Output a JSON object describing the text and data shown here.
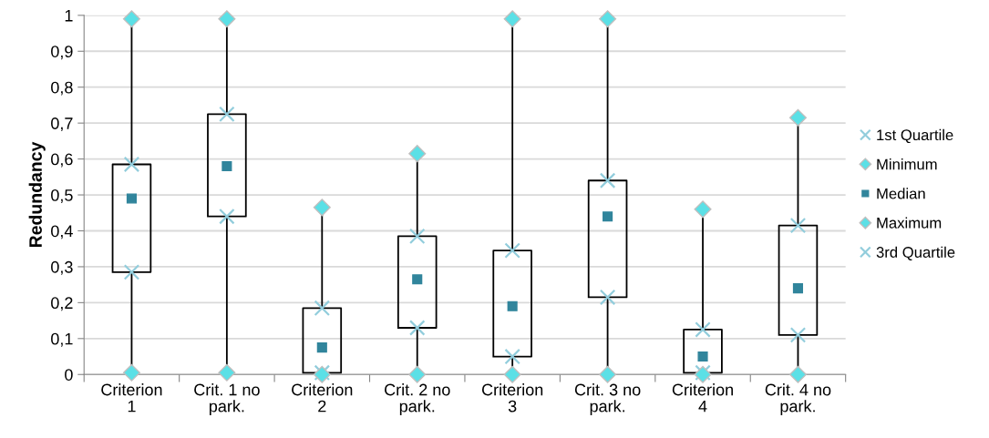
{
  "chart_data": {
    "type": "box",
    "ylabel": "Redundancy",
    "categories": [
      "Criterion 1",
      "Crit. 1 no park.",
      "Criterion 2",
      "Crit. 2 no park.",
      "Criterion 3",
      "Crit. 3 no park.",
      "Criterion 4",
      "Crit. 4 no park."
    ],
    "boxes": [
      {
        "low": 0.005,
        "q1": 0.285,
        "q3": 0.585,
        "high": 0.99
      },
      {
        "low": 0.005,
        "q1": 0.44,
        "q3": 0.725,
        "high": 0.99
      },
      {
        "low": 0,
        "q1": 0.005,
        "q3": 0.185,
        "high": 0.465
      },
      {
        "low": 0,
        "q1": 0.13,
        "q3": 0.385,
        "high": 0.615
      },
      {
        "low": 0,
        "q1": 0.05,
        "q3": 0.345,
        "high": 0.99
      },
      {
        "low": 0,
        "q1": 0.215,
        "q3": 0.54,
        "high": 0.99
      },
      {
        "low": 0,
        "q1": 0.005,
        "q3": 0.125,
        "high": 0.46
      },
      {
        "low": 0,
        "q1": 0.11,
        "q3": 0.415,
        "high": 0.715
      }
    ],
    "series": [
      {
        "name": "1st Quartile",
        "type": "scatter",
        "marker": "cross",
        "color": "#92cddc",
        "values": [
          0.285,
          0.44,
          0.005,
          0.13,
          0.05,
          0.215,
          0.005,
          0.11
        ]
      },
      {
        "name": "Minimum",
        "type": "scatter",
        "marker": "diamond",
        "color": "#5be0e6",
        "values": [
          0.005,
          0.005,
          0,
          0,
          0,
          0,
          0,
          0
        ]
      },
      {
        "name": "Median",
        "type": "scatter",
        "marker": "square",
        "color": "#31859c",
        "values": [
          0.49,
          0.58,
          0.075,
          0.265,
          0.19,
          0.44,
          0.05,
          0.24
        ]
      },
      {
        "name": "Maximum",
        "type": "scatter",
        "marker": "diamond",
        "color": "#5be0e6",
        "values": [
          0.99,
          0.99,
          0.465,
          0.615,
          0.99,
          0.99,
          0.46,
          0.715
        ]
      },
      {
        "name": "3rd Quartile",
        "type": "scatter",
        "marker": "cross",
        "color": "#92cddc",
        "values": [
          0.585,
          0.725,
          0.185,
          0.385,
          0.345,
          0.54,
          0.125,
          0.415
        ]
      }
    ],
    "ylim": [
      0,
      1
    ],
    "yticks": [
      0,
      {
        "value": 0.1,
        "label": "0,1"
      },
      {
        "value": 0.2,
        "label": "0,2"
      },
      {
        "value": 0.3,
        "label": "0,3"
      },
      {
        "value": 0.4,
        "label": "0,4"
      },
      {
        "value": 0.5,
        "label": "0,5"
      },
      {
        "value": 0.6,
        "label": "0,6"
      },
      {
        "value": 0.7,
        "label": "0,7"
      },
      {
        "value": 0.8,
        "label": "0,8"
      },
      {
        "value": 0.9,
        "label": "0,9"
      },
      1
    ],
    "grid": "y",
    "legend": "right"
  }
}
